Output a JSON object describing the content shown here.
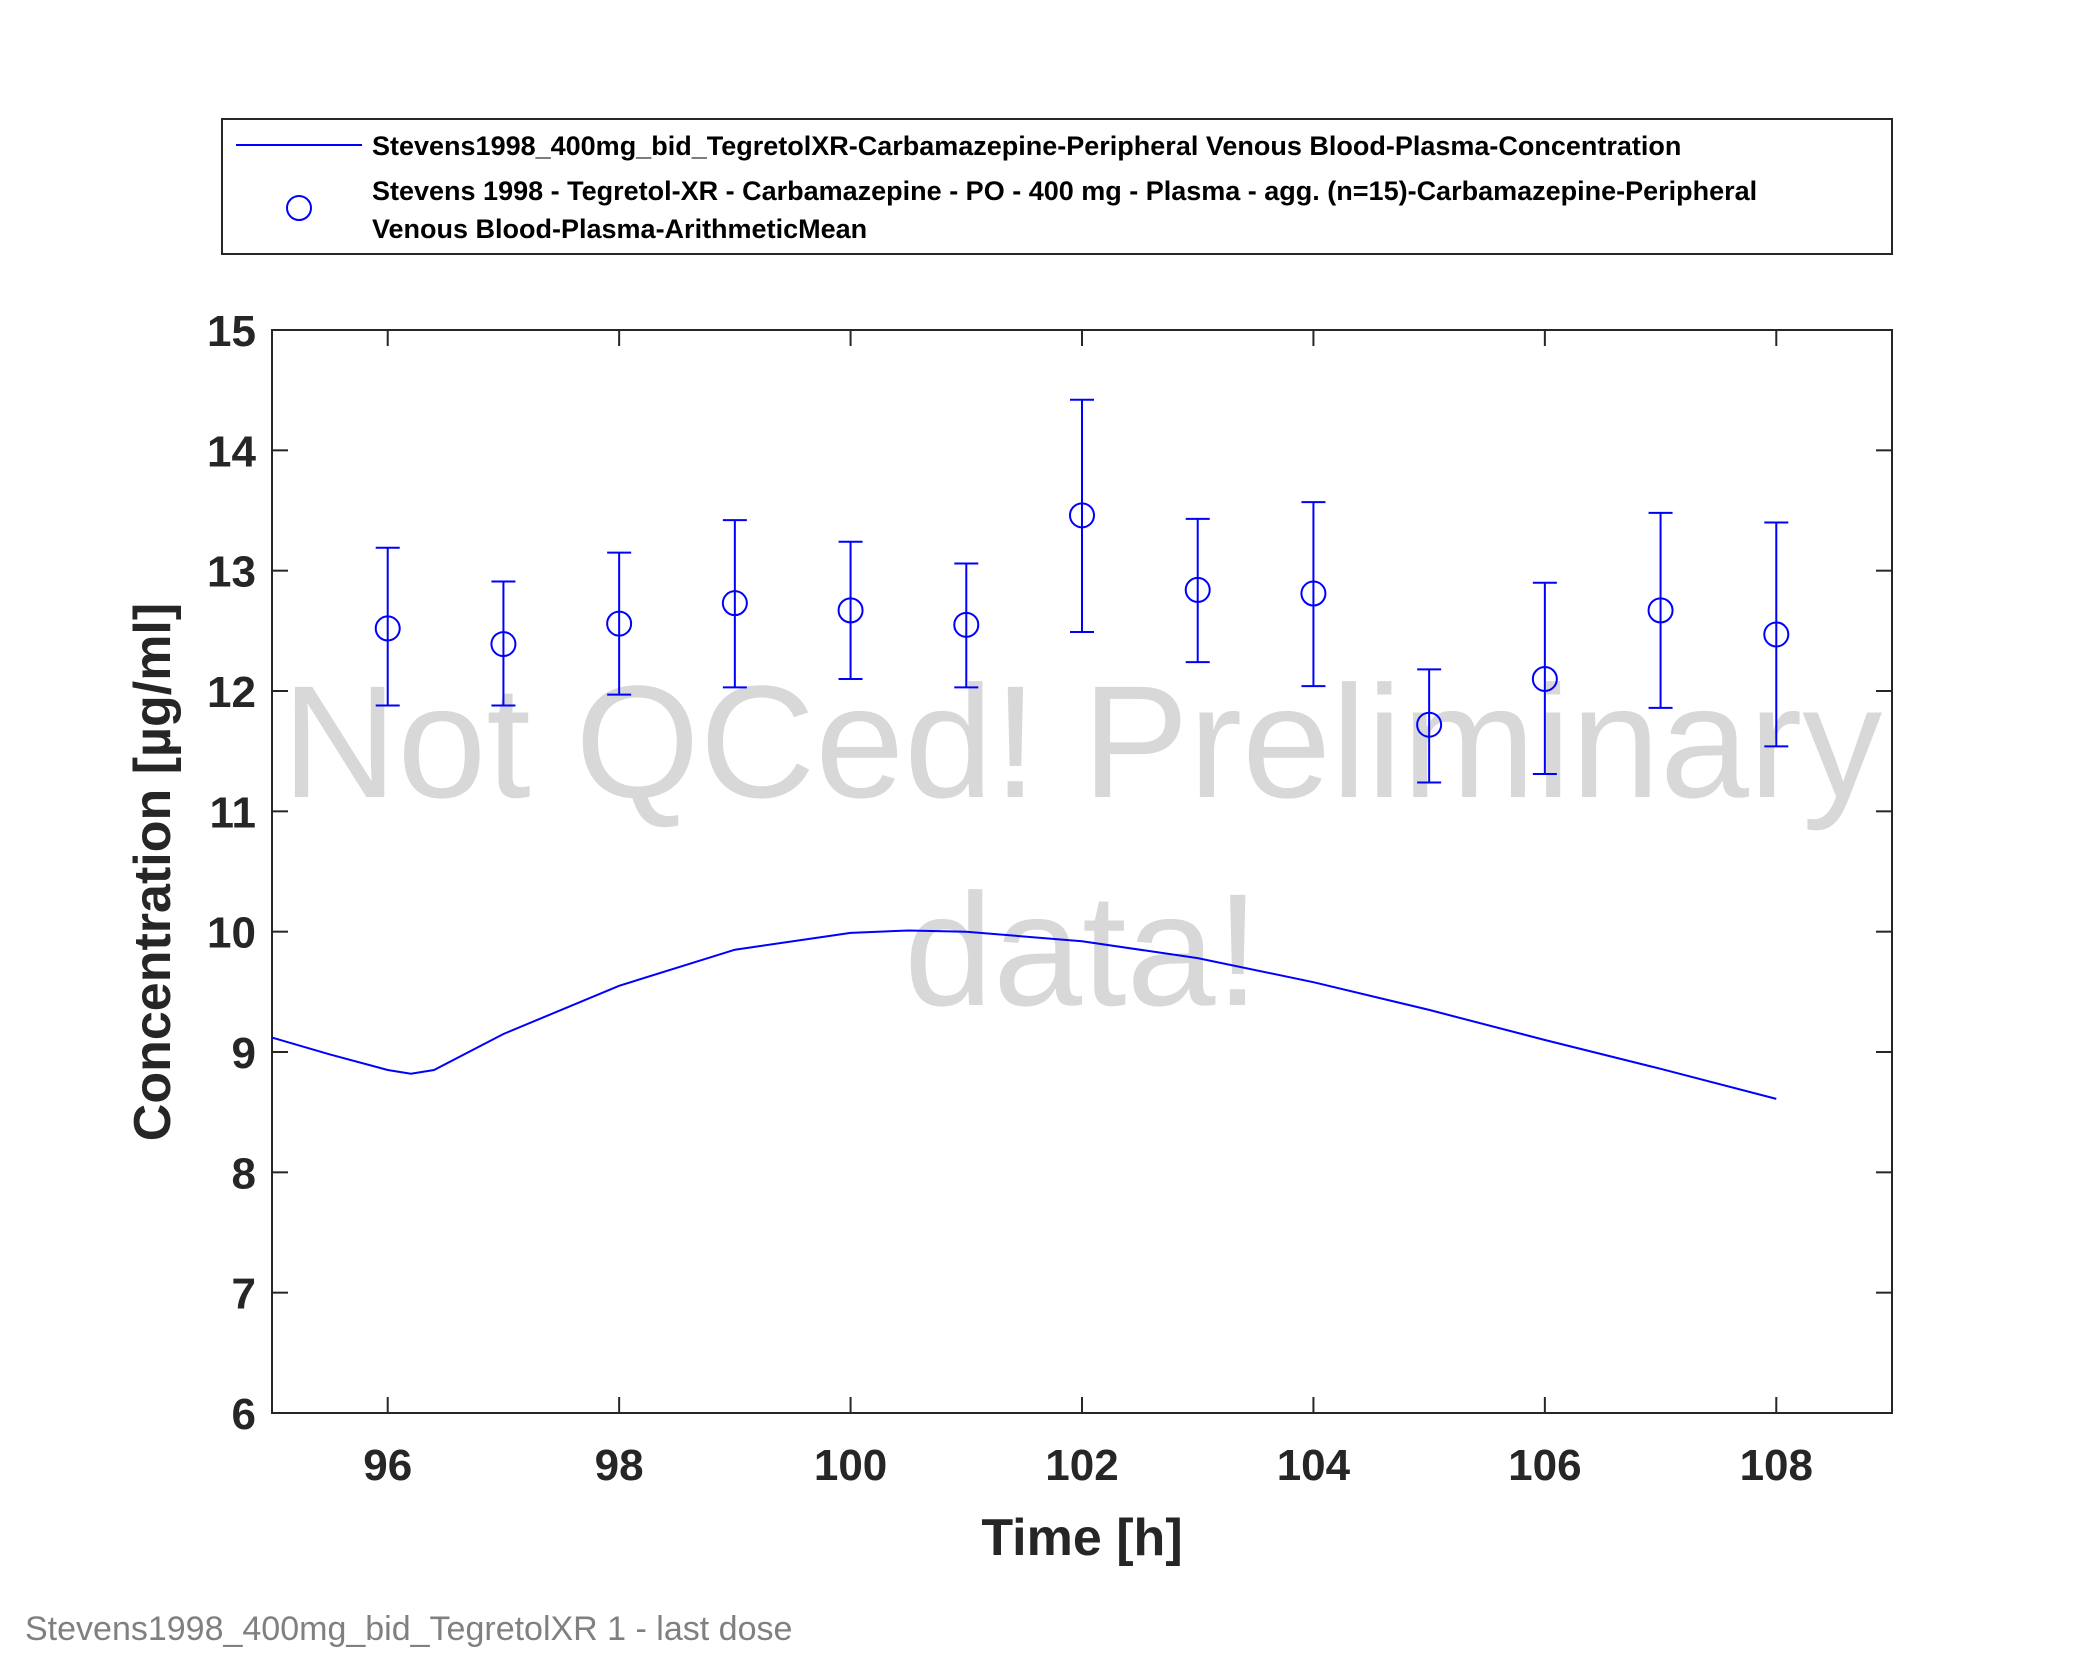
{
  "chart_data": {
    "type": "line",
    "title": "",
    "xlabel": "Time [h]",
    "ylabel": "Concentration [µg/ml]",
    "xlim": [
      95,
      109
    ],
    "ylim": [
      6,
      15
    ],
    "xticks": [
      96,
      98,
      100,
      102,
      104,
      106,
      108
    ],
    "yticks": [
      6,
      7,
      8,
      9,
      10,
      11,
      12,
      13,
      14,
      15
    ],
    "grid": false,
    "legend_position": "top",
    "series": [
      {
        "name": "Stevens1998_400mg_bid_TegretolXR-Carbamazepine-Peripheral Venous Blood-Plasma-Concentration",
        "kind": "line",
        "color": "#0000ff",
        "x": [
          95,
          95.5,
          96,
          96.2,
          96.4,
          97,
          98,
          99,
          100,
          100.5,
          101,
          102,
          103,
          104,
          105,
          106,
          107,
          108
        ],
        "y": [
          9.12,
          8.98,
          8.85,
          8.82,
          8.85,
          9.15,
          9.55,
          9.85,
          9.99,
          10.01,
          10.0,
          9.92,
          9.78,
          9.58,
          9.35,
          9.1,
          8.86,
          8.61
        ]
      },
      {
        "name": "Stevens 1998 - Tegretol-XR - Carbamazepine - PO - 400 mg - Plasma - agg. (n=15)-Carbamazepine-Peripheral Venous Blood-Plasma-ArithmeticMean",
        "kind": "errorbar-scatter",
        "color": "#0000ff",
        "marker": "circle",
        "x": [
          96,
          97,
          98,
          99,
          100,
          101,
          102,
          103,
          104,
          105,
          106,
          107,
          108
        ],
        "y": [
          12.52,
          12.39,
          12.56,
          12.73,
          12.67,
          12.55,
          13.46,
          12.84,
          12.81,
          11.72,
          12.1,
          12.67,
          12.47
        ],
        "y_lower": [
          11.88,
          11.88,
          11.97,
          12.03,
          12.1,
          12.03,
          12.49,
          12.24,
          12.04,
          11.24,
          11.31,
          11.86,
          11.54
        ],
        "y_upper": [
          13.19,
          12.91,
          13.15,
          13.42,
          13.24,
          13.06,
          14.42,
          13.43,
          13.57,
          12.18,
          12.9,
          13.48,
          13.4
        ]
      }
    ],
    "legend_entries": [
      [
        "Stevens1998_400mg_bid_TegretolXR-Carbamazepine-Peripheral Venous Blood-Plasma-Concentration"
      ],
      [
        "Stevens 1998 - Tegretol-XR - Carbamazepine - PO - 400 mg - Plasma - agg. (n=15)-Carbamazepine-Peripheral",
        "Venous Blood-Plasma-ArithmeticMean"
      ]
    ],
    "watermark_lines": [
      "Not QCed! Preliminary",
      "data!"
    ],
    "footnote": "Stevens1998_400mg_bid_TegretolXR 1 - last dose"
  }
}
